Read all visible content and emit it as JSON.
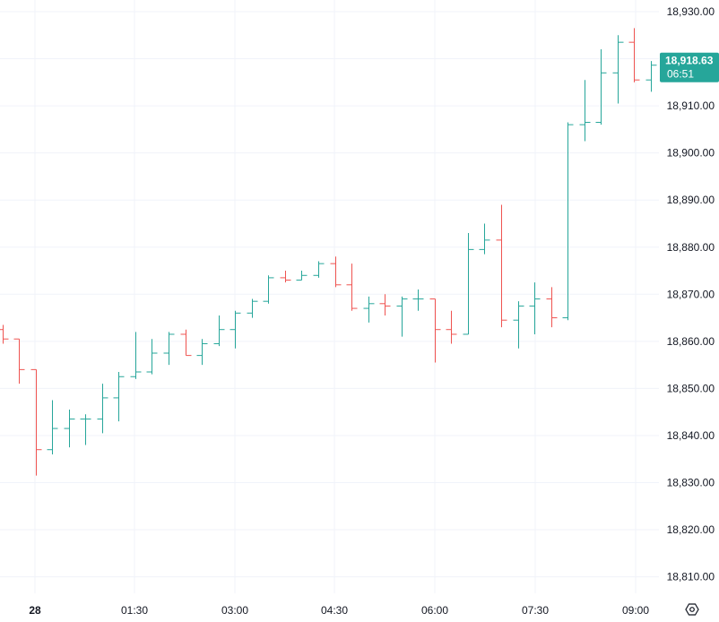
{
  "chart_data": {
    "type": "ohlc",
    "title": "",
    "xlabel": "",
    "ylabel": "",
    "ylim": [
      18805,
      18935
    ],
    "grid": true,
    "y_ticks": [
      "18,930.00",
      "18,920.00",
      "18,910.00",
      "18,900.00",
      "18,890.00",
      "18,880.00",
      "18,870.00",
      "18,860.00",
      "18,850.00",
      "18,840.00",
      "18,830.00",
      "18,820.00",
      "18,810.00"
    ],
    "x_ticks": [
      {
        "label": "28",
        "bold": true
      },
      {
        "label": "01:30",
        "bold": false
      },
      {
        "label": "03:00",
        "bold": false
      },
      {
        "label": "04:30",
        "bold": false
      },
      {
        "label": "06:00",
        "bold": false
      },
      {
        "label": "07:30",
        "bold": false
      },
      {
        "label": "09:00",
        "bold": false
      }
    ],
    "last_price": {
      "price": "18,918.63",
      "countdown": "06:51",
      "value": 18918.63
    },
    "colors": {
      "up": "#26a69a",
      "down": "#ef5350",
      "grid": "#f0f3fa",
      "text": "#131722",
      "badge": "#26a69a"
    },
    "bars": [
      {
        "o": 18862.5,
        "h": 18863.5,
        "l": 18859.5,
        "c": 18860.5
      },
      {
        "o": 18860.5,
        "h": 18860.5,
        "l": 18851.0,
        "c": 18854.0
      },
      {
        "o": 18854.0,
        "h": 18854.0,
        "l": 18831.5,
        "c": 18837.0
      },
      {
        "o": 18837.0,
        "h": 18847.5,
        "l": 18836.0,
        "c": 18841.5
      },
      {
        "o": 18841.5,
        "h": 18845.5,
        "l": 18837.5,
        "c": 18843.5
      },
      {
        "o": 18843.5,
        "h": 18844.5,
        "l": 18838.0,
        "c": 18843.5
      },
      {
        "o": 18843.5,
        "h": 18851.0,
        "l": 18840.5,
        "c": 18848.0
      },
      {
        "o": 18848.0,
        "h": 18853.5,
        "l": 18843.0,
        "c": 18852.5
      },
      {
        "o": 18852.5,
        "h": 18862.0,
        "l": 18852.0,
        "c": 18853.5
      },
      {
        "o": 18853.5,
        "h": 18860.5,
        "l": 18853.0,
        "c": 18857.5
      },
      {
        "o": 18857.5,
        "h": 18862.0,
        "l": 18855.0,
        "c": 18861.5
      },
      {
        "o": 18861.5,
        "h": 18862.5,
        "l": 18857.0,
        "c": 18857.0
      },
      {
        "o": 18857.0,
        "h": 18860.5,
        "l": 18855.0,
        "c": 18859.5
      },
      {
        "o": 18859.5,
        "h": 18865.5,
        "l": 18859.0,
        "c": 18862.5
      },
      {
        "o": 18862.5,
        "h": 18866.5,
        "l": 18858.5,
        "c": 18866.0
      },
      {
        "o": 18866.0,
        "h": 18869.0,
        "l": 18865.0,
        "c": 18868.5
      },
      {
        "o": 18868.5,
        "h": 18874.0,
        "l": 18868.0,
        "c": 18873.5
      },
      {
        "o": 18873.5,
        "h": 18875.0,
        "l": 18872.5,
        "c": 18873.0
      },
      {
        "o": 18873.0,
        "h": 18875.0,
        "l": 18873.0,
        "c": 18874.0
      },
      {
        "o": 18874.0,
        "h": 18877.0,
        "l": 18873.5,
        "c": 18876.5
      },
      {
        "o": 18876.5,
        "h": 18878.0,
        "l": 18871.5,
        "c": 18872.0
      },
      {
        "o": 18872.0,
        "h": 18876.5,
        "l": 18866.5,
        "c": 18867.0
      },
      {
        "o": 18867.0,
        "h": 18869.5,
        "l": 18864.0,
        "c": 18868.0
      },
      {
        "o": 18868.0,
        "h": 18870.0,
        "l": 18865.5,
        "c": 18867.5
      },
      {
        "o": 18867.5,
        "h": 18869.5,
        "l": 18861.0,
        "c": 18869.0
      },
      {
        "o": 18869.0,
        "h": 18871.0,
        "l": 18866.5,
        "c": 18869.0
      },
      {
        "o": 18869.0,
        "h": 18869.0,
        "l": 18855.5,
        "c": 18862.5
      },
      {
        "o": 18862.5,
        "h": 18866.5,
        "l": 18859.5,
        "c": 18861.5
      },
      {
        "o": 18861.5,
        "h": 18883.0,
        "l": 18861.5,
        "c": 18879.5
      },
      {
        "o": 18879.5,
        "h": 18885.0,
        "l": 18878.5,
        "c": 18881.5
      },
      {
        "o": 18881.5,
        "h": 18889.0,
        "l": 18863.0,
        "c": 18864.5
      },
      {
        "o": 18864.5,
        "h": 18868.5,
        "l": 18858.5,
        "c": 18867.5
      },
      {
        "o": 18867.5,
        "h": 18872.5,
        "l": 18861.5,
        "c": 18869.0
      },
      {
        "o": 18869.0,
        "h": 18871.5,
        "l": 18863.0,
        "c": 18865.0
      },
      {
        "o": 18865.0,
        "h": 18906.5,
        "l": 18864.5,
        "c": 18906.0
      },
      {
        "o": 18906.0,
        "h": 18915.5,
        "l": 18902.5,
        "c": 18906.5
      },
      {
        "o": 18906.5,
        "h": 18922.0,
        "l": 18906.0,
        "c": 18917.0
      },
      {
        "o": 18917.0,
        "h": 18925.0,
        "l": 18910.5,
        "c": 18923.5
      },
      {
        "o": 18923.5,
        "h": 18926.5,
        "l": 18915.0,
        "c": 18915.5
      },
      {
        "o": 18915.5,
        "h": 18919.5,
        "l": 18913.0,
        "c": 18918.63
      }
    ]
  },
  "ui": {
    "settings_icon": "settings-icon"
  }
}
